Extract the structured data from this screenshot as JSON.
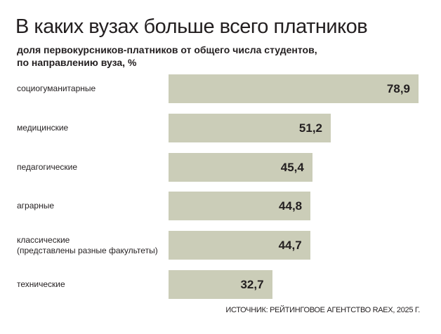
{
  "chart_data": {
    "type": "bar",
    "orientation": "horizontal",
    "title": "В каких вузах больше всего платников",
    "subtitle": "доля первокурсников-платников от общего числа студентов,\nпо направлению вуза, %",
    "categories": [
      "социогуманитарные",
      "медицинские",
      "педагогические",
      "аграрные",
      "классические\n(представлены разные факультеты)",
      "технические"
    ],
    "values": [
      78.9,
      51.2,
      45.4,
      44.8,
      44.7,
      32.7
    ],
    "value_labels": [
      "78,9",
      "51,2",
      "45,4",
      "44,8",
      "44,7",
      "32,7"
    ],
    "xlim": [
      0,
      78.9
    ],
    "grid": false,
    "bar_color": "#cbcdb8",
    "source": "ИСТОЧНИК: РЕЙТИНГОВОЕ АГЕНТСТВО RAEX, 2025 Г."
  }
}
